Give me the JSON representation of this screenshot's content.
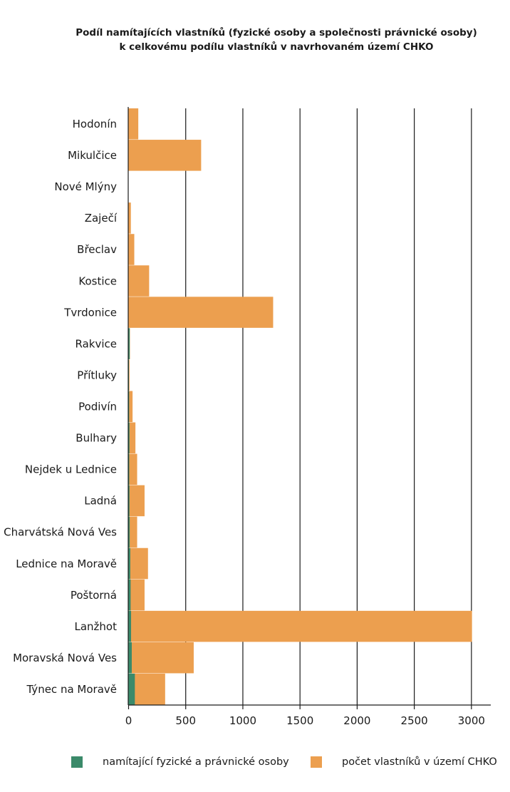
{
  "chart_data": {
    "type": "bar",
    "orientation": "horizontal",
    "stacking": "overlay",
    "title_lines": [
      "Podíl namítajících vlastníků (fyzické osoby a společnosti právnické osoby)",
      "k celkovému podílu vlastníků v navrhovaném území CHKO"
    ],
    "categories": [
      "Hodonín",
      "Mikulčice",
      "Nové Mlýny",
      "Zaječí",
      "Břeclav",
      "Kostice",
      "Tvrdonice",
      "Rakvice",
      "Přítluky",
      "Podivín",
      "Bulhary",
      "Nejdek u Lednice",
      "Ladná",
      "Charvátská Nová Ves",
      "Lednice na Moravě",
      "Poštorná",
      "Lanžhot",
      "Moravská Nová Ves",
      "Týnec na Moravě"
    ],
    "series": [
      {
        "name": "namítající fyzické a právnické osoby",
        "color": "#3b8a6a",
        "values": [
          0,
          0,
          0,
          0,
          0,
          0,
          0,
          10,
          3,
          5,
          8,
          6,
          8,
          10,
          15,
          18,
          22,
          28,
          55
        ]
      },
      {
        "name": "počet vlastníků v území CHKO",
        "color": "#ec9f4f",
        "values": [
          85,
          635,
          0,
          20,
          50,
          180,
          1265,
          12,
          8,
          35,
          60,
          75,
          140,
          75,
          170,
          140,
          3005,
          570,
          320
        ]
      }
    ],
    "x_ticks": [
      "0",
      "500",
      "1000",
      "1500",
      "2000",
      "2500",
      "3000"
    ],
    "xlim": [
      0,
      3200
    ],
    "grid": "vertical",
    "legend_position": "bottom"
  }
}
